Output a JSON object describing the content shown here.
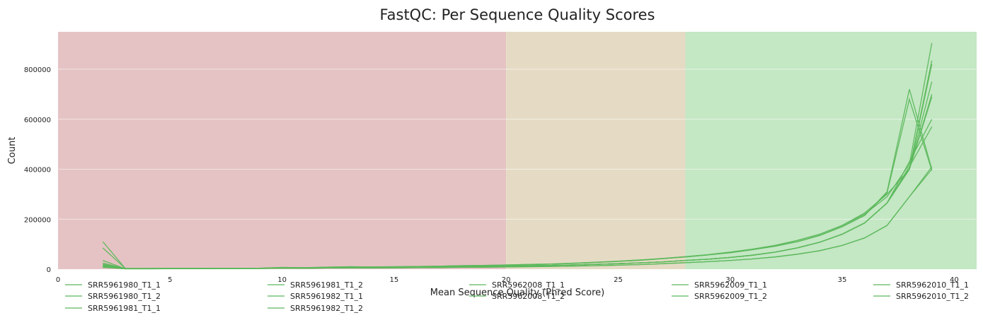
{
  "chart_data": {
    "type": "line",
    "title": "FastQC: Per Sequence Quality Scores",
    "xlabel": "Mean Sequence Quality (Phred Score)",
    "ylabel": "Count",
    "xlim": [
      0,
      41
    ],
    "ylim": [
      0,
      950000
    ],
    "x_ticks": [
      0,
      5,
      10,
      15,
      20,
      25,
      30,
      35,
      40
    ],
    "y_ticks": [
      0,
      200000,
      400000,
      600000,
      800000
    ],
    "grid": true,
    "legend_position": "bottom",
    "bands": [
      {
        "from": 0,
        "to": 20,
        "color": "#e5c3c4"
      },
      {
        "from": 20,
        "to": 28,
        "color": "#e5dbc4"
      },
      {
        "from": 28,
        "to": 41,
        "color": "#c4e7c4"
      }
    ],
    "line_color": "#5cb85c",
    "x": [
      2,
      3,
      4,
      5,
      6,
      7,
      8,
      9,
      10,
      11,
      12,
      13,
      14,
      15,
      16,
      17,
      18,
      19,
      20,
      21,
      22,
      23,
      24,
      25,
      26,
      27,
      28,
      29,
      30,
      31,
      32,
      33,
      34,
      35,
      36,
      37,
      38,
      39
    ],
    "series": [
      {
        "name": "SRR5961980_T1_1",
        "values": [
          110000,
          3000,
          3000,
          3500,
          3500,
          4000,
          4000,
          4000,
          7000,
          6000,
          8000,
          10000,
          9000,
          10000,
          11000,
          12000,
          14000,
          15000,
          17000,
          19000,
          21000,
          24000,
          28000,
          32000,
          37000,
          43000,
          50000,
          58000,
          68000,
          80000,
          95000,
          115000,
          140000,
          175000,
          220000,
          290000,
          420000,
          905000
        ]
      },
      {
        "name": "SRR5961980_T1_2",
        "values": [
          85000,
          3000,
          3000,
          3500,
          3500,
          4000,
          4000,
          4000,
          7000,
          6000,
          8000,
          10000,
          9000,
          10000,
          11000,
          12000,
          14000,
          15000,
          17000,
          19000,
          21000,
          24000,
          28000,
          32000,
          37000,
          43000,
          50000,
          58000,
          68000,
          80000,
          95000,
          115000,
          140000,
          175000,
          225000,
          300000,
          400000,
          835000
        ]
      },
      {
        "name": "SRR5961981_T1_1",
        "values": [
          35000,
          2000,
          2000,
          2500,
          2500,
          3000,
          3000,
          3000,
          5000,
          4500,
          6000,
          7000,
          7000,
          7500,
          8000,
          9000,
          10000,
          11000,
          12000,
          13500,
          15000,
          17000,
          19500,
          22000,
          25500,
          29500,
          35000,
          40000,
          47000,
          56000,
          68000,
          85000,
          108000,
          140000,
          185000,
          265000,
          400000,
          700000
        ]
      },
      {
        "name": "SRR5961981_T1_2",
        "values": [
          20000,
          2000,
          2000,
          2500,
          2500,
          3000,
          3000,
          3000,
          5000,
          4500,
          6000,
          7000,
          7000,
          7500,
          8000,
          9000,
          10000,
          11000,
          12000,
          13500,
          15000,
          17000,
          19500,
          22000,
          25500,
          29500,
          35000,
          40000,
          47000,
          56000,
          68000,
          85000,
          108000,
          140000,
          185000,
          265000,
          400000,
          750000
        ]
      },
      {
        "name": "SRR5961982_T1_1",
        "values": [
          25000,
          2000,
          2000,
          2500,
          2500,
          3000,
          3000,
          3000,
          5000,
          4500,
          6000,
          7000,
          7000,
          7500,
          8000,
          9000,
          10000,
          11000,
          12000,
          13500,
          15000,
          17000,
          19500,
          22000,
          25500,
          29500,
          35000,
          40000,
          47000,
          56000,
          68000,
          85000,
          108000,
          140000,
          185000,
          265000,
          400000,
          820000
        ]
      },
      {
        "name": "SRR5961982_T1_2",
        "values": [
          18000,
          2000,
          2000,
          2500,
          2500,
          3000,
          3000,
          3000,
          5000,
          4500,
          6000,
          7000,
          7000,
          7500,
          8000,
          9000,
          10000,
          11000,
          12000,
          13500,
          15000,
          17000,
          19500,
          22000,
          25500,
          29500,
          35000,
          40000,
          47000,
          56000,
          68000,
          85000,
          108000,
          140000,
          185000,
          265000,
          400000,
          690000
        ]
      },
      {
        "name": "SRR5962008_T1_1",
        "values": [
          10000,
          1500,
          1500,
          2000,
          2000,
          2200,
          2200,
          2500,
          4000,
          3500,
          4500,
          5000,
          5000,
          5500,
          6000,
          6500,
          7500,
          8000,
          9000,
          10000,
          11000,
          12500,
          14000,
          16000,
          18500,
          22000,
          26000,
          30000,
          35000,
          41000,
          49000,
          60000,
          74000,
          95000,
          125000,
          175000,
          290000,
          400000
        ]
      },
      {
        "name": "SRR5962008_T1_2",
        "values": [
          8000,
          1500,
          1500,
          2000,
          2000,
          2200,
          2200,
          2500,
          4000,
          3500,
          4500,
          5000,
          5000,
          5500,
          6000,
          6500,
          7500,
          8000,
          9000,
          10000,
          11000,
          12500,
          14000,
          16000,
          18500,
          22000,
          26000,
          30000,
          35000,
          41000,
          49000,
          60000,
          74000,
          95000,
          125000,
          175000,
          290000,
          410000
        ]
      },
      {
        "name": "SRR5962009_T1_1",
        "values": [
          15000,
          2000,
          2000,
          2500,
          2500,
          3000,
          3000,
          3000,
          5000,
          4500,
          6000,
          7000,
          7000,
          7500,
          8000,
          9000,
          10000,
          11000,
          12000,
          13500,
          15000,
          17000,
          19500,
          22000,
          25500,
          29500,
          35000,
          40000,
          47000,
          56000,
          68000,
          85000,
          108000,
          140000,
          185000,
          265000,
          430000,
          600000
        ]
      },
      {
        "name": "SRR5962009_T1_2",
        "values": [
          12000,
          2000,
          2000,
          2500,
          2500,
          3000,
          3000,
          3000,
          5000,
          4500,
          6000,
          7000,
          7000,
          7500,
          8000,
          9000,
          10000,
          11000,
          12000,
          13500,
          15000,
          17000,
          19500,
          22000,
          25500,
          29500,
          35000,
          40000,
          47000,
          56000,
          68000,
          85000,
          108000,
          140000,
          185000,
          265000,
          410000,
          570000
        ]
      },
      {
        "name": "SRR5962010_T1_1",
        "values": [
          9000,
          2500,
          2500,
          3000,
          3000,
          3500,
          3500,
          3500,
          6000,
          5500,
          7000,
          9000,
          8000,
          9000,
          10000,
          11000,
          13000,
          14000,
          16000,
          18000,
          20000,
          23000,
          27000,
          31000,
          36000,
          42000,
          49000,
          57000,
          66000,
          78000,
          92000,
          110000,
          135000,
          170000,
          215000,
          310000,
          720000,
          400000
        ]
      },
      {
        "name": "SRR5962010_T1_2",
        "values": [
          7000,
          2500,
          2500,
          3000,
          3000,
          3500,
          3500,
          3500,
          6000,
          5500,
          7000,
          9000,
          8000,
          9000,
          10000,
          11000,
          13000,
          14000,
          16000,
          18000,
          20000,
          23000,
          27000,
          31000,
          36000,
          42000,
          49000,
          57000,
          66000,
          78000,
          92000,
          110000,
          135000,
          170000,
          215000,
          305000,
          680000,
          395000
        ]
      }
    ]
  }
}
